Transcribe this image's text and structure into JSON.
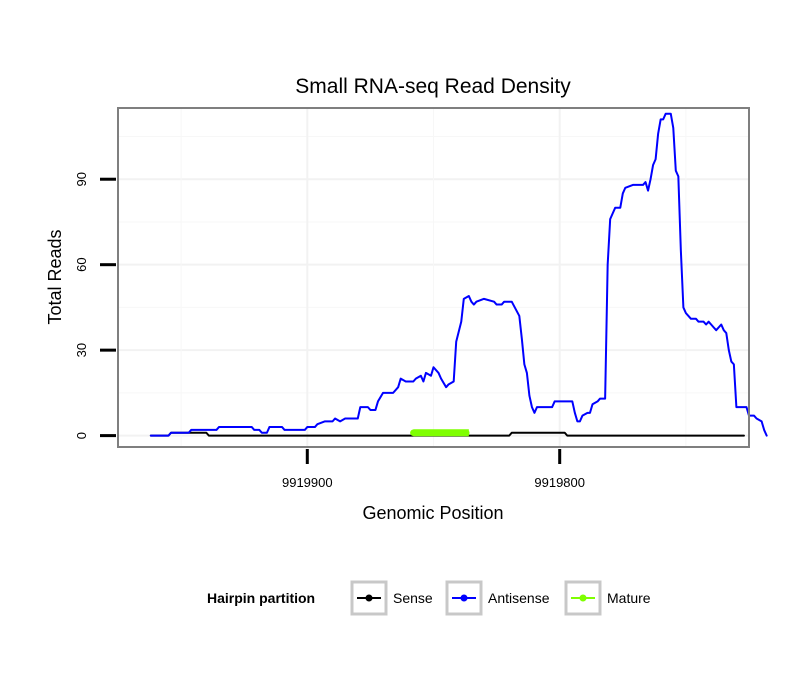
{
  "chart_data": {
    "type": "line",
    "title": "Small RNA-seq Read Density",
    "xlabel": "Genomic Position",
    "ylabel": "Total Reads",
    "xlim": [
      9919975,
      9919725
    ],
    "ylim": [
      -4,
      115
    ],
    "x_reversed": true,
    "x_ticks": [
      9919900,
      9919800
    ],
    "x_tick_labels": [
      "9919900",
      "9919800"
    ],
    "y_ticks": [
      0,
      30,
      60,
      90
    ],
    "y_tick_labels": [
      "0",
      "30",
      "60",
      "90"
    ],
    "grid": true,
    "legend": {
      "title": "Hairpin partition",
      "placement": "bottom"
    },
    "series": [
      {
        "name": "Sense",
        "color": "#000000",
        "points": [
          [
            9919962,
            0
          ],
          [
            9919955,
            0
          ],
          [
            9919954,
            1
          ],
          [
            9919940,
            1
          ],
          [
            9919939,
            0
          ],
          [
            9919820,
            0
          ],
          [
            9919819,
            1
          ],
          [
            9919798,
            1
          ],
          [
            9919797,
            0
          ],
          [
            9919727,
            0
          ]
        ]
      },
      {
        "name": "Antisense",
        "color": "#0000ff",
        "points": [
          [
            9919962,
            0
          ],
          [
            9919955,
            0
          ],
          [
            9919954,
            1
          ],
          [
            9919947,
            1
          ],
          [
            9919946,
            2
          ],
          [
            9919936,
            2
          ],
          [
            9919935,
            3
          ],
          [
            9919922,
            3
          ],
          [
            9919921,
            2
          ],
          [
            9919919,
            2
          ],
          [
            9919918,
            1
          ],
          [
            9919916,
            1
          ],
          [
            9919915,
            3
          ],
          [
            9919910,
            3
          ],
          [
            9919909,
            2
          ],
          [
            9919901,
            2
          ],
          [
            9919900,
            3
          ],
          [
            9919897,
            3
          ],
          [
            9919896,
            4
          ],
          [
            9919893,
            5
          ],
          [
            9919890,
            5
          ],
          [
            9919889,
            6
          ],
          [
            9919887,
            5
          ],
          [
            9919885,
            6
          ],
          [
            9919880,
            6
          ],
          [
            9919879,
            10
          ],
          [
            9919876,
            10
          ],
          [
            9919875,
            9
          ],
          [
            9919873,
            9
          ],
          [
            9919872,
            12
          ],
          [
            9919870,
            15
          ],
          [
            9919866,
            15
          ],
          [
            9919864,
            17
          ],
          [
            9919863,
            20
          ],
          [
            9919861,
            19
          ],
          [
            9919858,
            19
          ],
          [
            9919857,
            20
          ],
          [
            9919855,
            21
          ],
          [
            9919854,
            19
          ],
          [
            9919853,
            22
          ],
          [
            9919851,
            21
          ],
          [
            9919850,
            24
          ],
          [
            9919848,
            22
          ],
          [
            9919847,
            20
          ],
          [
            9919845,
            17
          ],
          [
            9919844,
            18
          ],
          [
            9919842,
            19
          ],
          [
            9919841,
            33
          ],
          [
            9919839,
            40
          ],
          [
            9919838,
            48
          ],
          [
            9919836,
            49
          ],
          [
            9919835,
            47
          ],
          [
            9919834,
            46
          ],
          [
            9919833,
            47
          ],
          [
            9919830,
            48
          ],
          [
            9919826,
            47
          ],
          [
            9919825,
            46
          ],
          [
            9919823,
            46
          ],
          [
            9919822,
            47
          ],
          [
            9919819,
            47
          ],
          [
            9919816,
            42
          ],
          [
            9919815,
            34
          ],
          [
            9919814,
            25
          ],
          [
            9919813,
            22
          ],
          [
            9919812,
            14
          ],
          [
            9919811,
            10
          ],
          [
            9919810,
            8
          ],
          [
            9919809,
            10
          ],
          [
            9919803,
            10
          ],
          [
            9919802,
            12
          ],
          [
            9919795,
            12
          ],
          [
            9919794,
            8
          ],
          [
            9919793,
            5
          ],
          [
            9919792,
            5
          ],
          [
            9919791,
            7
          ],
          [
            9919789,
            8
          ],
          [
            9919788,
            8
          ],
          [
            9919787,
            11
          ],
          [
            9919785,
            12
          ],
          [
            9919784,
            13
          ],
          [
            9919782,
            13
          ],
          [
            9919781,
            60
          ],
          [
            9919780,
            76
          ],
          [
            9919779,
            78
          ],
          [
            9919778,
            80
          ],
          [
            9919776,
            80
          ],
          [
            9919775,
            85
          ],
          [
            9919774,
            87
          ],
          [
            9919771,
            88
          ],
          [
            9919767,
            88
          ],
          [
            9919766,
            89
          ],
          [
            9919765,
            86
          ],
          [
            9919764,
            90
          ],
          [
            9919763,
            95
          ],
          [
            9919762,
            97
          ],
          [
            9919761,
            106
          ],
          [
            9919760,
            111
          ],
          [
            9919759,
            111
          ],
          [
            9919758,
            113
          ],
          [
            9919756,
            113
          ],
          [
            9919755,
            108
          ],
          [
            9919754,
            93
          ],
          [
            9919753,
            91
          ],
          [
            9919752,
            65
          ],
          [
            9919751,
            45
          ],
          [
            9919750,
            43
          ],
          [
            9919749,
            42
          ],
          [
            9919748,
            41
          ],
          [
            9919746,
            41
          ],
          [
            9919745,
            40
          ],
          [
            9919743,
            40
          ],
          [
            9919742,
            39
          ],
          [
            9919741,
            40
          ],
          [
            9919740,
            39
          ],
          [
            9919739,
            38
          ],
          [
            9919738,
            37
          ],
          [
            9919737,
            38
          ],
          [
            9919736,
            39
          ],
          [
            9919735,
            37
          ],
          [
            9919734,
            36
          ],
          [
            9919733,
            30
          ],
          [
            9919732,
            26
          ],
          [
            9919731,
            25
          ],
          [
            9919730,
            10
          ],
          [
            9919726,
            10
          ],
          [
            9919725,
            7
          ],
          [
            9919723,
            7
          ],
          [
            9919722,
            6
          ],
          [
            9919720,
            5
          ],
          [
            9919719,
            2
          ],
          [
            9919718,
            0
          ]
        ]
      },
      {
        "name": "Mature",
        "color": "#7fff00",
        "points": [
          [
            9919858,
            1
          ],
          [
            9919836,
            1
          ]
        ]
      }
    ]
  }
}
